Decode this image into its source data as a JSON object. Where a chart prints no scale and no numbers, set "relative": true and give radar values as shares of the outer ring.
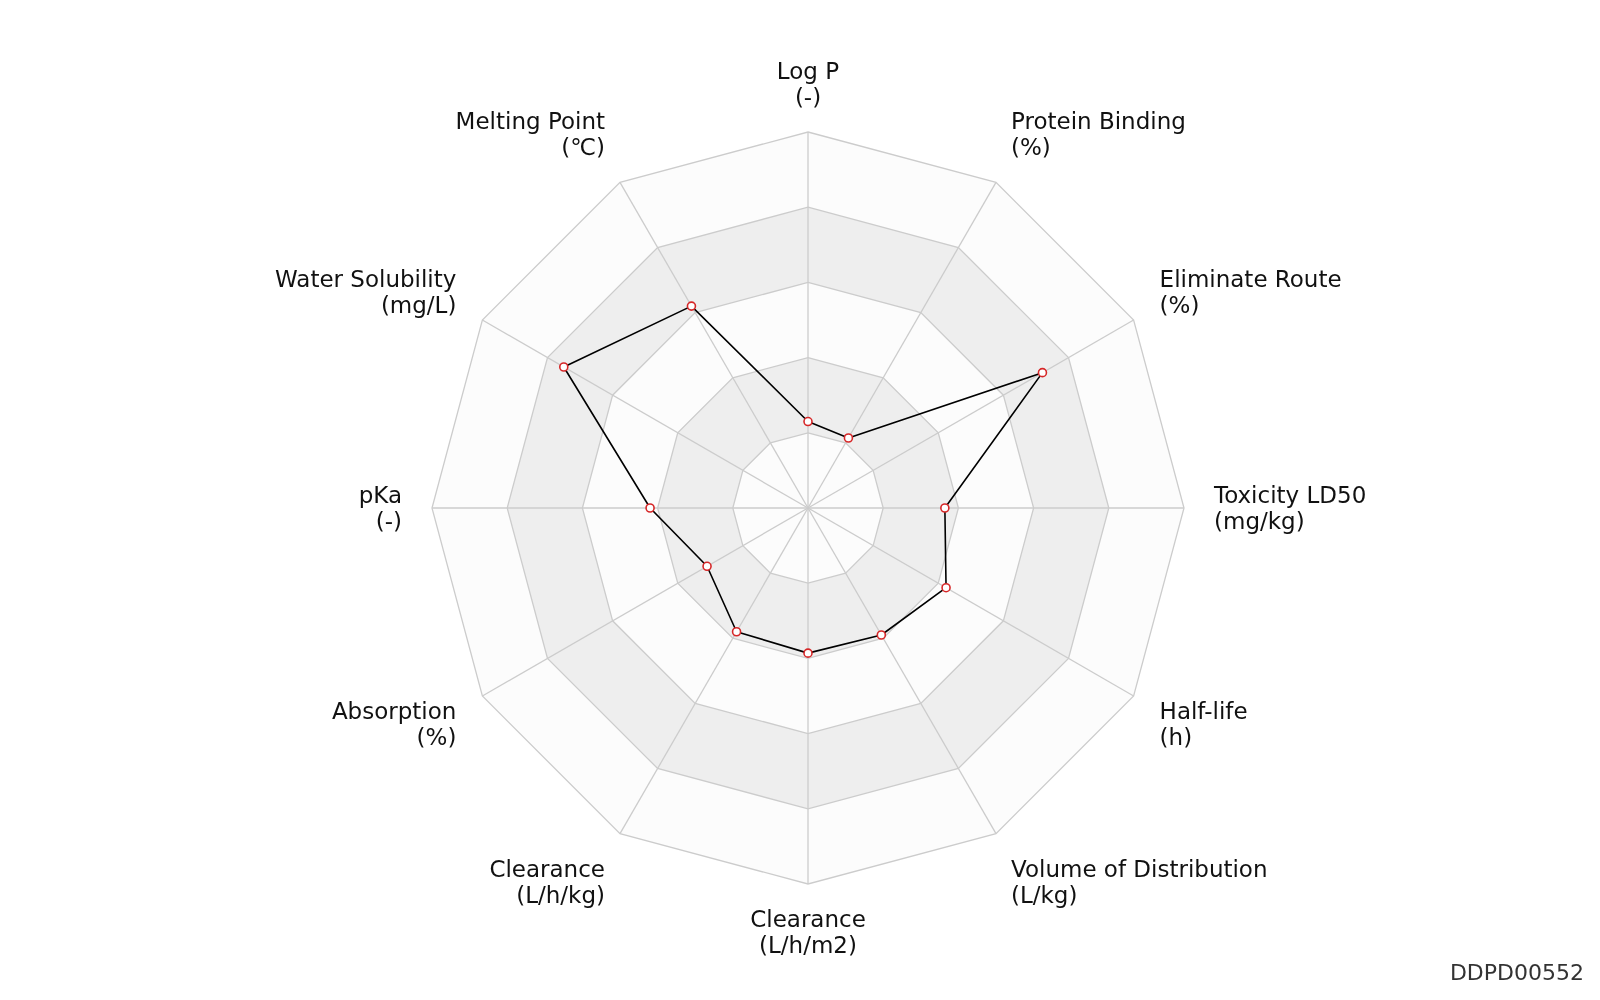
{
  "chart_data": {
    "type": "radar",
    "relative": true,
    "categories": [
      "Log P\n(-)",
      "Protein Binding\n(%)",
      "Eliminate Route\n(%)",
      "Toxicity LD50\n(mg/kg)",
      "Half-life\n(h)",
      "Volume of Distribution\n(L/kg)",
      "Clearance\n(L/h/m2)",
      "Clearance\n(L/h/kg)",
      "Absorption\n(%)",
      "pKa\n(-)",
      "Water Solubility\n(mg/L)",
      "Melting Point\n(℃)"
    ],
    "series": [
      {
        "color": "#000000",
        "values": [
          0.23,
          0.215,
          0.72,
          0.364,
          0.424,
          0.39,
          0.386,
          0.38,
          0.31,
          0.42,
          0.75,
          0.62
        ]
      }
    ],
    "marker": "circle",
    "annotations": [
      "DDPD00552"
    ]
  }
}
